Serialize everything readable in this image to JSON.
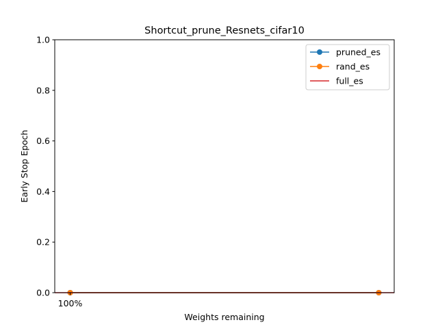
{
  "chart_data": {
    "type": "line",
    "title": "Shortcut_prune_Resnets_cifar10",
    "xlabel": "Weights remaining",
    "ylabel": "Early Stop Epoch",
    "ylim": [
      0,
      1.0
    ],
    "yticks": [
      "0.0",
      "0.2",
      "0.4",
      "0.6",
      "0.8",
      "1.0"
    ],
    "ytick_values": [
      0,
      0.2,
      0.4,
      0.6,
      0.8,
      1.0
    ],
    "xtick_labels": [
      "100%"
    ],
    "grid": false,
    "legend_position": "top-right",
    "series": [
      {
        "name": "pruned_es",
        "color": "#1f77b4",
        "marker": "circle",
        "x": [
          0,
          1
        ],
        "values": [
          0,
          0
        ]
      },
      {
        "name": "rand_es",
        "color": "#ff7f0e",
        "marker": "circle",
        "x": [
          0,
          1
        ],
        "values": [
          0,
          0
        ]
      },
      {
        "name": "full_es",
        "color": "#d62728",
        "marker": "none",
        "x": [
          0,
          1
        ],
        "values": [
          0,
          0
        ]
      }
    ]
  }
}
